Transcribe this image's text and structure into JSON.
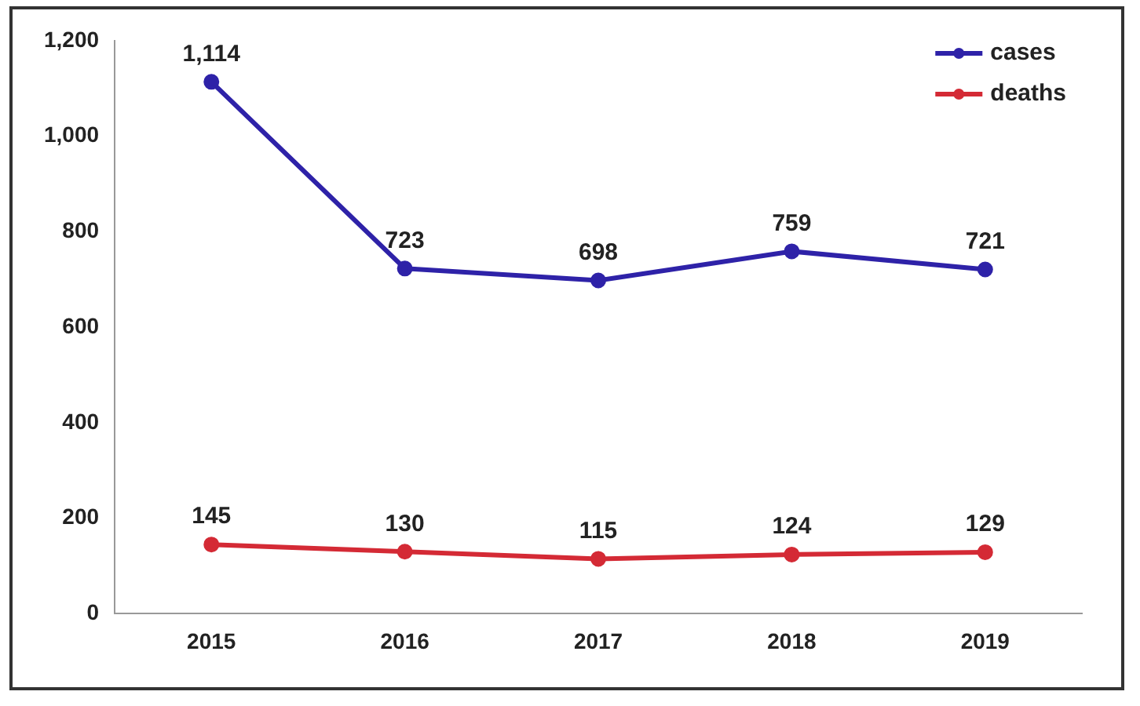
{
  "chart_data": {
    "type": "line",
    "categories": [
      "2015",
      "2016",
      "2017",
      "2018",
      "2019"
    ],
    "series": [
      {
        "name": "cases",
        "color": "#2e22a8",
        "values": [
          1114,
          723,
          698,
          759,
          721
        ],
        "value_labels": [
          "1,114",
          "723",
          "698",
          "759",
          "721"
        ]
      },
      {
        "name": "deaths",
        "color": "#d42a35",
        "values": [
          145,
          130,
          115,
          124,
          129
        ]
      }
    ],
    "ylim": [
      0,
      1200
    ],
    "yticks": [
      0,
      200,
      400,
      600,
      800,
      {
        "value": 1000,
        "label": "1,000"
      },
      {
        "value": 1200,
        "label": "1,200"
      }
    ],
    "grid": false,
    "legend": "top right",
    "marker": "circle",
    "line_style": "solid",
    "data_labels": true
  }
}
